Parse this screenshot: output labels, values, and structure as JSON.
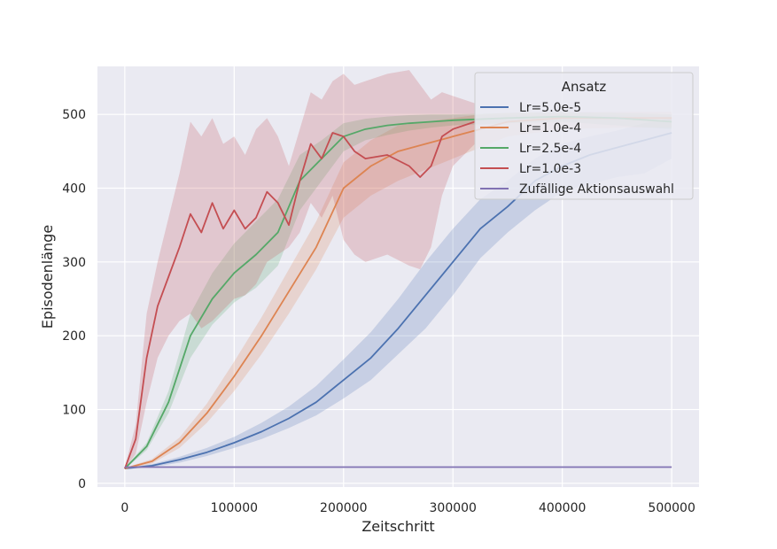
{
  "chart_data": {
    "type": "line",
    "xlabel": "Zeitschritt",
    "ylabel": "Episodenlänge",
    "xlim": [
      -25000,
      525000
    ],
    "ylim": [
      -5,
      565
    ],
    "xticks": [
      0,
      100000,
      200000,
      300000,
      400000,
      500000
    ],
    "yticks": [
      0,
      100,
      200,
      300,
      400,
      500
    ],
    "grid": true,
    "legend": {
      "title": "Ansatz",
      "placement": "top-right"
    },
    "series": [
      {
        "name": "Lr=5.0e-5",
        "color": "#4c72b0",
        "points": [
          [
            0,
            20
          ],
          [
            25000,
            24
          ],
          [
            50000,
            32
          ],
          [
            75000,
            42
          ],
          [
            100000,
            55
          ],
          [
            125000,
            70
          ],
          [
            150000,
            88
          ],
          [
            175000,
            110
          ],
          [
            200000,
            140
          ],
          [
            225000,
            170
          ],
          [
            250000,
            210
          ],
          [
            275000,
            255
          ],
          [
            300000,
            300
          ],
          [
            325000,
            345
          ],
          [
            350000,
            375
          ],
          [
            375000,
            410
          ],
          [
            400000,
            430
          ],
          [
            425000,
            445
          ],
          [
            450000,
            455
          ],
          [
            475000,
            465
          ],
          [
            500000,
            475
          ]
        ],
        "lower": [
          [
            0,
            19
          ],
          [
            25000,
            22
          ],
          [
            50000,
            28
          ],
          [
            75000,
            37
          ],
          [
            100000,
            48
          ],
          [
            125000,
            60
          ],
          [
            150000,
            75
          ],
          [
            175000,
            92
          ],
          [
            200000,
            115
          ],
          [
            225000,
            140
          ],
          [
            250000,
            175
          ],
          [
            275000,
            210
          ],
          [
            300000,
            255
          ],
          [
            325000,
            305
          ],
          [
            350000,
            340
          ],
          [
            375000,
            370
          ],
          [
            400000,
            395
          ],
          [
            425000,
            405
          ],
          [
            450000,
            415
          ],
          [
            475000,
            420
          ],
          [
            500000,
            440
          ]
        ],
        "upper": [
          [
            0,
            21
          ],
          [
            25000,
            26
          ],
          [
            50000,
            36
          ],
          [
            75000,
            48
          ],
          [
            100000,
            63
          ],
          [
            125000,
            82
          ],
          [
            150000,
            104
          ],
          [
            175000,
            132
          ],
          [
            200000,
            168
          ],
          [
            225000,
            205
          ],
          [
            250000,
            250
          ],
          [
            275000,
            300
          ],
          [
            300000,
            345
          ],
          [
            325000,
            385
          ],
          [
            350000,
            410
          ],
          [
            375000,
            440
          ],
          [
            400000,
            460
          ],
          [
            425000,
            470
          ],
          [
            450000,
            478
          ],
          [
            475000,
            488
          ],
          [
            500000,
            495
          ]
        ]
      },
      {
        "name": "Lr=1.0e-4",
        "color": "#dd8452",
        "points": [
          [
            0,
            20
          ],
          [
            25000,
            30
          ],
          [
            50000,
            55
          ],
          [
            75000,
            95
          ],
          [
            100000,
            145
          ],
          [
            125000,
            200
          ],
          [
            150000,
            260
          ],
          [
            175000,
            320
          ],
          [
            200000,
            400
          ],
          [
            225000,
            430
          ],
          [
            250000,
            450
          ],
          [
            275000,
            460
          ],
          [
            300000,
            470
          ],
          [
            325000,
            480
          ],
          [
            350000,
            490
          ],
          [
            400000,
            495
          ],
          [
            450000,
            495
          ],
          [
            500000,
            495
          ]
        ],
        "lower": [
          [
            0,
            19
          ],
          [
            25000,
            27
          ],
          [
            50000,
            48
          ],
          [
            75000,
            82
          ],
          [
            100000,
            125
          ],
          [
            125000,
            175
          ],
          [
            150000,
            230
          ],
          [
            175000,
            290
          ],
          [
            200000,
            360
          ],
          [
            225000,
            390
          ],
          [
            250000,
            410
          ],
          [
            275000,
            425
          ],
          [
            300000,
            440
          ],
          [
            325000,
            455
          ],
          [
            350000,
            470
          ],
          [
            400000,
            480
          ],
          [
            450000,
            482
          ],
          [
            500000,
            482
          ]
        ],
        "upper": [
          [
            0,
            21
          ],
          [
            25000,
            33
          ],
          [
            50000,
            62
          ],
          [
            75000,
            108
          ],
          [
            100000,
            165
          ],
          [
            125000,
            225
          ],
          [
            150000,
            290
          ],
          [
            175000,
            355
          ],
          [
            200000,
            435
          ],
          [
            225000,
            465
          ],
          [
            250000,
            485
          ],
          [
            275000,
            490
          ],
          [
            300000,
            495
          ],
          [
            325000,
            500
          ],
          [
            350000,
            502
          ],
          [
            400000,
            503
          ],
          [
            450000,
            503
          ],
          [
            500000,
            503
          ]
        ]
      },
      {
        "name": "Lr=2.5e-4",
        "color": "#55a868",
        "points": [
          [
            0,
            20
          ],
          [
            20000,
            50
          ],
          [
            40000,
            110
          ],
          [
            60000,
            200
          ],
          [
            80000,
            250
          ],
          [
            100000,
            285
          ],
          [
            120000,
            310
          ],
          [
            140000,
            340
          ],
          [
            160000,
            410
          ],
          [
            180000,
            440
          ],
          [
            200000,
            470
          ],
          [
            220000,
            480
          ],
          [
            240000,
            485
          ],
          [
            260000,
            488
          ],
          [
            280000,
            490
          ],
          [
            300000,
            492
          ],
          [
            350000,
            495
          ],
          [
            400000,
            497
          ],
          [
            450000,
            495
          ],
          [
            500000,
            490
          ]
        ],
        "lower": [
          [
            0,
            19
          ],
          [
            20000,
            45
          ],
          [
            40000,
            95
          ],
          [
            60000,
            170
          ],
          [
            80000,
            215
          ],
          [
            100000,
            245
          ],
          [
            120000,
            265
          ],
          [
            140000,
            295
          ],
          [
            160000,
            370
          ],
          [
            180000,
            410
          ],
          [
            200000,
            450
          ],
          [
            220000,
            465
          ],
          [
            240000,
            472
          ],
          [
            260000,
            478
          ],
          [
            280000,
            482
          ],
          [
            300000,
            485
          ],
          [
            350000,
            488
          ],
          [
            400000,
            490
          ],
          [
            450000,
            485
          ],
          [
            500000,
            480
          ]
        ],
        "upper": [
          [
            0,
            21
          ],
          [
            20000,
            55
          ],
          [
            40000,
            125
          ],
          [
            60000,
            230
          ],
          [
            80000,
            285
          ],
          [
            100000,
            325
          ],
          [
            120000,
            355
          ],
          [
            140000,
            385
          ],
          [
            160000,
            445
          ],
          [
            180000,
            465
          ],
          [
            200000,
            488
          ],
          [
            220000,
            494
          ],
          [
            240000,
            497
          ],
          [
            260000,
            499
          ],
          [
            280000,
            500
          ],
          [
            300000,
            500
          ],
          [
            350000,
            502
          ],
          [
            400000,
            503
          ],
          [
            450000,
            502
          ],
          [
            500000,
            500
          ]
        ]
      },
      {
        "name": "Lr=1.0e-3",
        "color": "#c44e52",
        "points": [
          [
            0,
            20
          ],
          [
            10000,
            60
          ],
          [
            20000,
            170
          ],
          [
            30000,
            240
          ],
          [
            40000,
            280
          ],
          [
            50000,
            320
          ],
          [
            60000,
            365
          ],
          [
            70000,
            340
          ],
          [
            80000,
            380
          ],
          [
            90000,
            345
          ],
          [
            100000,
            370
          ],
          [
            110000,
            345
          ],
          [
            120000,
            360
          ],
          [
            130000,
            395
          ],
          [
            140000,
            380
          ],
          [
            150000,
            350
          ],
          [
            160000,
            410
          ],
          [
            170000,
            460
          ],
          [
            180000,
            440
          ],
          [
            190000,
            475
          ],
          [
            200000,
            470
          ],
          [
            210000,
            450
          ],
          [
            220000,
            440
          ],
          [
            240000,
            445
          ],
          [
            260000,
            430
          ],
          [
            270000,
            415
          ],
          [
            280000,
            430
          ],
          [
            290000,
            470
          ],
          [
            300000,
            480
          ],
          [
            320000,
            490
          ]
        ],
        "lower": [
          [
            0,
            19
          ],
          [
            10000,
            40
          ],
          [
            20000,
            110
          ],
          [
            30000,
            170
          ],
          [
            40000,
            200
          ],
          [
            50000,
            220
          ],
          [
            60000,
            230
          ],
          [
            70000,
            210
          ],
          [
            80000,
            220
          ],
          [
            90000,
            235
          ],
          [
            100000,
            250
          ],
          [
            110000,
            255
          ],
          [
            120000,
            270
          ],
          [
            130000,
            300
          ],
          [
            140000,
            310
          ],
          [
            150000,
            320
          ],
          [
            160000,
            340
          ],
          [
            170000,
            380
          ],
          [
            180000,
            360
          ],
          [
            190000,
            390
          ],
          [
            200000,
            330
          ],
          [
            210000,
            310
          ],
          [
            220000,
            300
          ],
          [
            240000,
            310
          ],
          [
            260000,
            295
          ],
          [
            270000,
            290
          ],
          [
            280000,
            320
          ],
          [
            290000,
            390
          ],
          [
            300000,
            430
          ],
          [
            320000,
            460
          ]
        ],
        "upper": [
          [
            0,
            21
          ],
          [
            10000,
            80
          ],
          [
            20000,
            230
          ],
          [
            30000,
            300
          ],
          [
            40000,
            360
          ],
          [
            50000,
            420
          ],
          [
            60000,
            490
          ],
          [
            70000,
            470
          ],
          [
            80000,
            495
          ],
          [
            90000,
            460
          ],
          [
            100000,
            470
          ],
          [
            110000,
            445
          ],
          [
            120000,
            480
          ],
          [
            130000,
            495
          ],
          [
            140000,
            470
          ],
          [
            150000,
            430
          ],
          [
            160000,
            480
          ],
          [
            170000,
            530
          ],
          [
            180000,
            520
          ],
          [
            190000,
            545
          ],
          [
            200000,
            555
          ],
          [
            210000,
            540
          ],
          [
            220000,
            545
          ],
          [
            240000,
            555
          ],
          [
            260000,
            560
          ],
          [
            270000,
            540
          ],
          [
            280000,
            520
          ],
          [
            290000,
            530
          ],
          [
            300000,
            525
          ],
          [
            320000,
            515
          ]
        ]
      },
      {
        "name": "Zufällige Aktionsauswahl",
        "color": "#8172b3",
        "points": [
          [
            0,
            22
          ],
          [
            50000,
            22
          ],
          [
            100000,
            22
          ],
          [
            150000,
            22
          ],
          [
            200000,
            22
          ],
          [
            250000,
            22
          ],
          [
            300000,
            22
          ],
          [
            350000,
            22
          ],
          [
            400000,
            22
          ],
          [
            450000,
            22
          ],
          [
            500000,
            22
          ]
        ]
      }
    ]
  }
}
